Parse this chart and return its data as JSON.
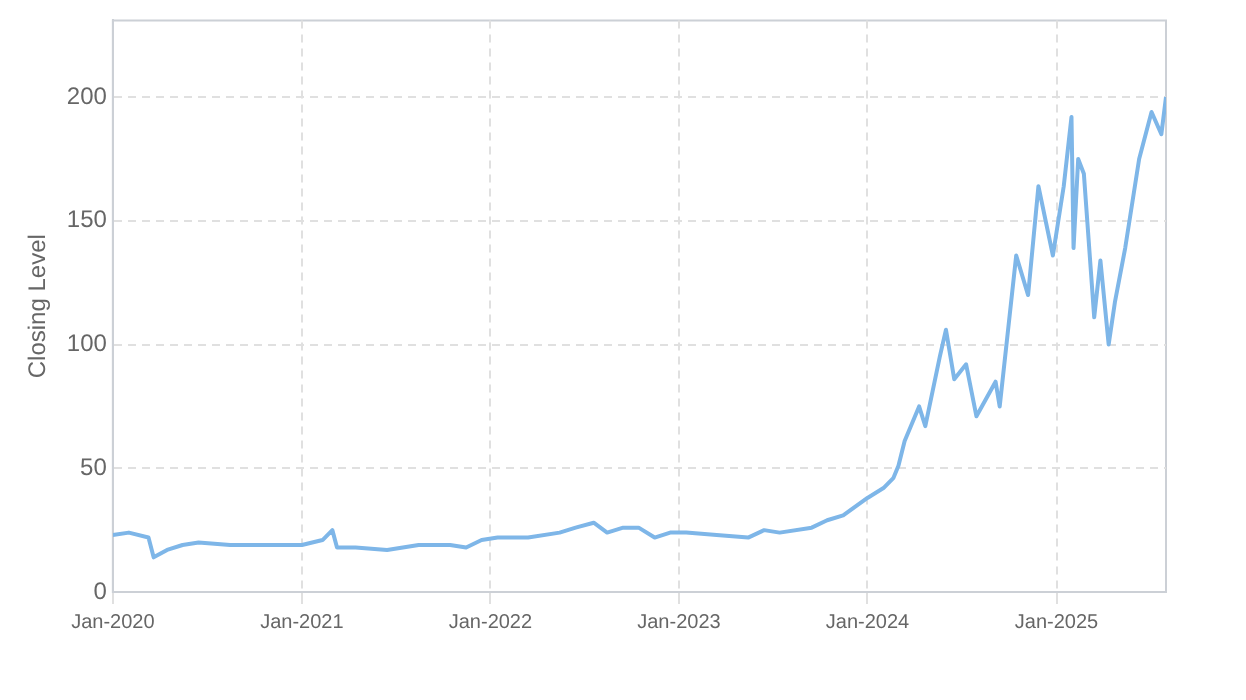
{
  "chart_data": {
    "type": "line",
    "ylabel": "Closing Level",
    "x": [
      "2020-01-01",
      "2020-02-01",
      "2020-03-10",
      "2020-03-20",
      "2020-04-15",
      "2020-05-15",
      "2020-06-15",
      "2020-08-15",
      "2020-10-15",
      "2020-12-15",
      "2021-01-01",
      "2021-02-10",
      "2021-03-01",
      "2021-03-10",
      "2021-04-15",
      "2021-06-15",
      "2021-08-15",
      "2021-10-15",
      "2021-11-15",
      "2021-12-15",
      "2022-01-15",
      "2022-03-15",
      "2022-05-15",
      "2022-06-15",
      "2022-07-20",
      "2022-08-15",
      "2022-09-15",
      "2022-10-15",
      "2022-11-15",
      "2022-12-15",
      "2023-01-15",
      "2023-03-15",
      "2023-05-15",
      "2023-06-15",
      "2023-07-15",
      "2023-09-15",
      "2023-10-15",
      "2023-11-15",
      "2024-01-01",
      "2024-02-01",
      "2024-02-20",
      "2024-03-01",
      "2024-03-13",
      "2024-04-10",
      "2024-04-22",
      "2024-05-20",
      "2024-06-01",
      "2024-06-17",
      "2024-07-10",
      "2024-07-30",
      "2024-09-05",
      "2024-09-13",
      "2024-10-15",
      "2024-11-07",
      "2024-11-27",
      "2024-12-25",
      "2025-01-15",
      "2025-01-30",
      "2025-02-03",
      "2025-02-12",
      "2025-02-23",
      "2025-03-15",
      "2025-03-27",
      "2025-04-12",
      "2025-04-24",
      "2025-05-14",
      "2025-06-10",
      "2025-07-04",
      "2025-07-23",
      "2025-08-01"
    ],
    "series": [
      {
        "color": "#7eb6e8",
        "values": [
          23,
          24,
          22,
          14,
          17,
          19,
          20,
          19,
          19,
          19,
          19,
          21,
          25,
          18,
          18,
          17,
          19,
          19,
          18,
          21,
          22,
          22,
          24,
          26,
          28,
          24,
          26,
          26,
          22,
          24,
          24,
          23,
          22,
          25,
          24,
          26,
          29,
          31,
          38,
          42,
          46,
          51,
          61,
          75,
          67,
          95,
          106,
          86,
          92,
          71,
          85,
          75,
          136,
          120,
          164,
          136,
          164,
          192,
          139,
          175,
          169,
          111,
          134,
          100,
          117,
          139,
          175,
          194,
          185,
          200
        ]
      }
    ],
    "xlim": [
      "2020-01-01",
      "2025-08-01"
    ],
    "xticks": [
      {
        "value": "2020-01-01",
        "label": "Jan-2020"
      },
      {
        "value": "2021-01-01",
        "label": "Jan-2021"
      },
      {
        "value": "2022-01-01",
        "label": "Jan-2022"
      },
      {
        "value": "2023-01-01",
        "label": "Jan-2023"
      },
      {
        "value": "2024-01-01",
        "label": "Jan-2024"
      },
      {
        "value": "2025-01-01",
        "label": "Jan-2025"
      }
    ],
    "ylim": [
      0,
      231
    ],
    "yticks": [
      0,
      50,
      100,
      150,
      200
    ],
    "grid": true,
    "legend": false,
    "marker": "none",
    "line_style": "solid"
  }
}
